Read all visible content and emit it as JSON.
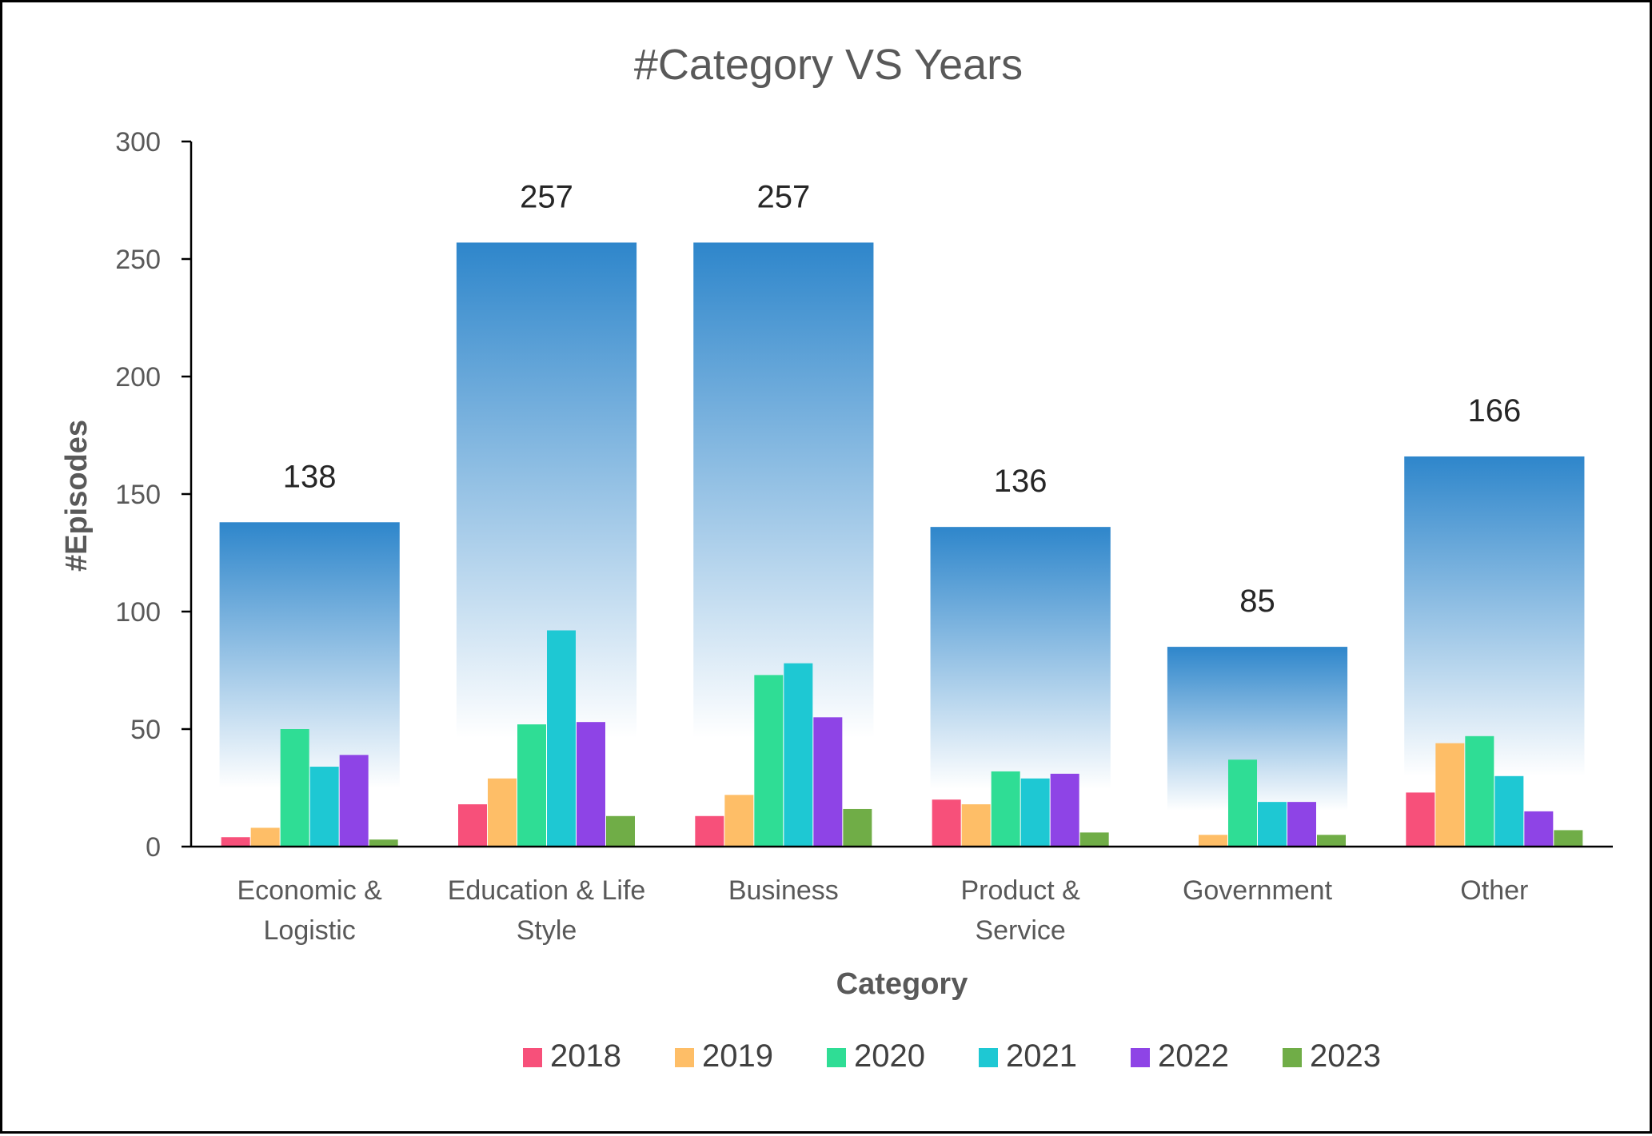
{
  "chart_data": {
    "type": "bar",
    "title": "#Category VS Years",
    "xlabel": "Category",
    "ylabel": "#Episodes",
    "ylim": [
      0,
      300
    ],
    "yticks": [
      "0",
      "50",
      "100",
      "150",
      "200",
      "250",
      "300"
    ],
    "categories": [
      [
        "Economic &",
        "Logistic"
      ],
      [
        "Education & Life",
        "Style"
      ],
      [
        "Business"
      ],
      [
        "Product &",
        "Service"
      ],
      [
        "Government"
      ],
      [
        "Other"
      ]
    ],
    "totals": [
      138,
      257,
      257,
      136,
      85,
      166
    ],
    "total_color": "#2E86CB",
    "series": [
      {
        "name": "2018",
        "color": "#F7507A",
        "values": [
          4,
          18,
          13,
          20,
          0,
          23
        ]
      },
      {
        "name": "2019",
        "color": "#FEBE67",
        "values": [
          8,
          29,
          22,
          18,
          5,
          44
        ]
      },
      {
        "name": "2020",
        "color": "#2FDD95",
        "values": [
          50,
          52,
          73,
          32,
          37,
          47
        ]
      },
      {
        "name": "2021",
        "color": "#1EC8D3",
        "values": [
          34,
          92,
          78,
          29,
          19,
          30
        ]
      },
      {
        "name": "2022",
        "color": "#8E44E6",
        "values": [
          39,
          53,
          55,
          31,
          19,
          15
        ]
      },
      {
        "name": "2023",
        "color": "#70AD47",
        "values": [
          3,
          13,
          16,
          6,
          5,
          7
        ]
      }
    ],
    "legend_position": "bottom",
    "grid": false
  }
}
